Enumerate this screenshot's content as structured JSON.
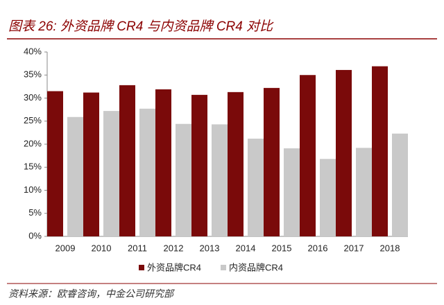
{
  "chart_data": {
    "type": "bar",
    "title": "图表 26: 外资品牌 CR4 与内资品牌 CR4 对比",
    "source": "资料来源：欧睿咨询，中金公司研究部",
    "categories": [
      "2009",
      "2010",
      "2011",
      "2012",
      "2013",
      "2014",
      "2015",
      "2016",
      "2017",
      "2018"
    ],
    "series": [
      {
        "name": "外资品牌CR4",
        "color": "#7a0a0a",
        "values": [
          31.5,
          31.2,
          32.8,
          31.9,
          30.7,
          31.3,
          32.2,
          35.0,
          36.1,
          36.9
        ]
      },
      {
        "name": "内资品牌CR4",
        "color": "#c9c9c9",
        "values": [
          25.9,
          27.2,
          27.7,
          24.4,
          24.3,
          21.2,
          19.1,
          16.8,
          19.2,
          22.3
        ]
      }
    ],
    "ylim": [
      0,
      40
    ],
    "yticks": [
      {
        "value": 0,
        "label": "0%"
      },
      {
        "value": 5,
        "label": "5%"
      },
      {
        "value": 10,
        "label": "10%"
      },
      {
        "value": 15,
        "label": "15%"
      },
      {
        "value": 20,
        "label": "20%"
      },
      {
        "value": 25,
        "label": "25%"
      },
      {
        "value": 30,
        "label": "30%"
      },
      {
        "value": 35,
        "label": "35%"
      },
      {
        "value": 40,
        "label": "40%"
      }
    ],
    "legend": "bottom"
  }
}
